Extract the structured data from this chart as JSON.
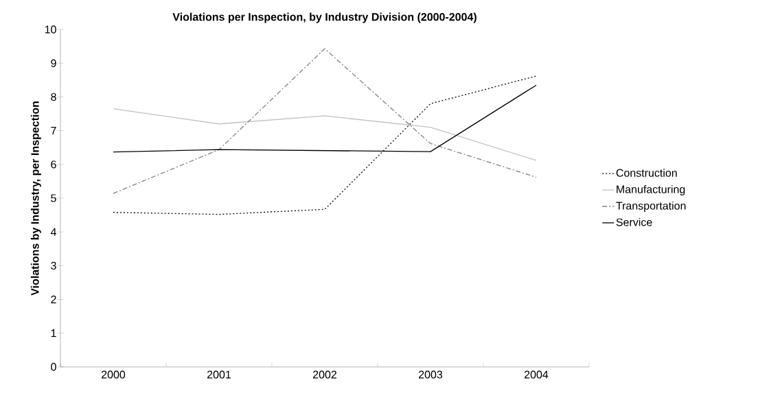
{
  "chart_data": {
    "type": "line",
    "title": "Violations per Inspection, by Industry Division (2000-2004)",
    "ylabel": "Violations by Industry, per Inspection",
    "categories": [
      "2000",
      "2001",
      "2002",
      "2003",
      "2004"
    ],
    "series": [
      {
        "name": "Construction",
        "color": "#000000",
        "line_style": "dotted",
        "values": [
          4.58,
          4.52,
          4.67,
          7.8,
          8.62
        ]
      },
      {
        "name": "Manufacturing",
        "color": "#c0c0c0",
        "line_style": "solid",
        "values": [
          7.65,
          7.2,
          7.44,
          7.1,
          6.12
        ]
      },
      {
        "name": "Transportation",
        "color": "#808080",
        "line_style": "dashed",
        "values": [
          5.14,
          6.44,
          9.43,
          6.62,
          5.62
        ]
      },
      {
        "name": "Service",
        "color": "#000000",
        "line_style": "solid",
        "values": [
          6.37,
          6.44,
          6.41,
          6.38,
          8.35
        ]
      }
    ],
    "ylim": [
      0,
      10
    ],
    "yticks": [
      0,
      1,
      2,
      3,
      4,
      5,
      6,
      7,
      8,
      9,
      10
    ],
    "grid": false,
    "legend": "right",
    "marker": "none"
  }
}
